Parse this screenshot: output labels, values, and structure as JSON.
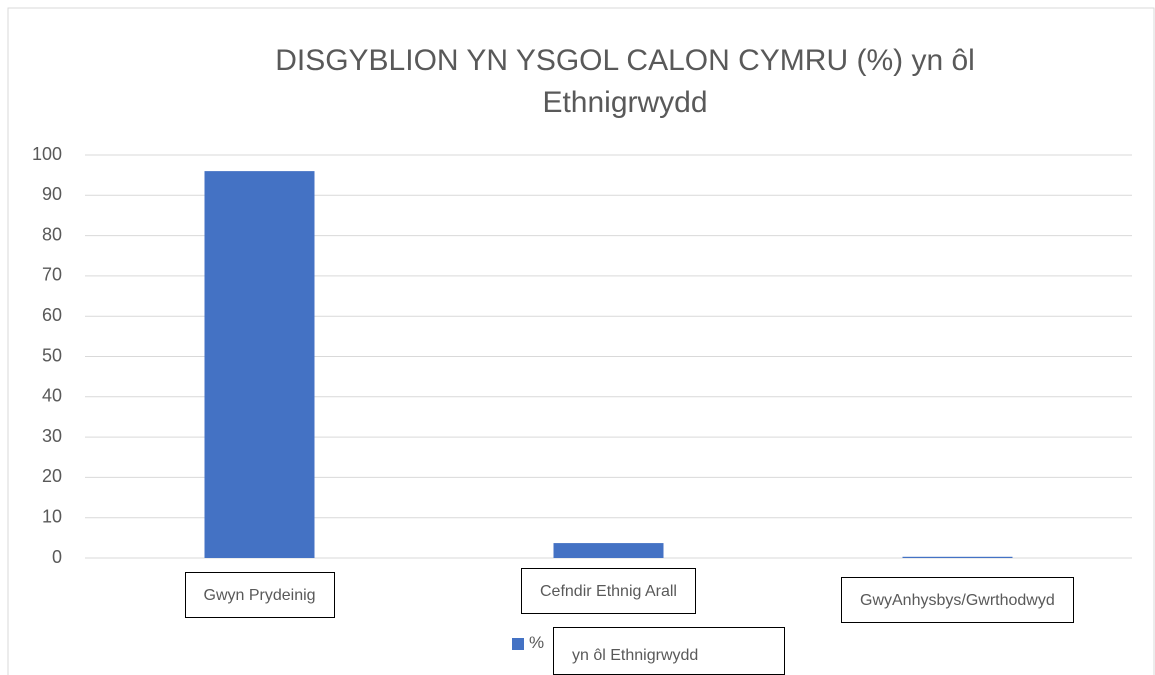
{
  "chart_data": {
    "type": "bar",
    "title": "DISGYBLION YN YSGOL CALON CYMRU (%) yn ôl Ethnigrwydd",
    "categories": [
      "Gwyn Prydeinig",
      "Cefndir Ethnig Arall",
      "GwyAnhysbys/Gwrthodwyd"
    ],
    "series": [
      {
        "name": "%",
        "color": "#4472c4",
        "values": [
          96,
          3.7,
          0.3
        ]
      }
    ],
    "annotations": [
      "yn ôl Ethnigrwydd"
    ],
    "ylim": [
      0,
      100
    ],
    "yticks": [
      0,
      10,
      20,
      30,
      40,
      50,
      60,
      70,
      80,
      90,
      100
    ],
    "grid": true,
    "legend": "bottom"
  }
}
